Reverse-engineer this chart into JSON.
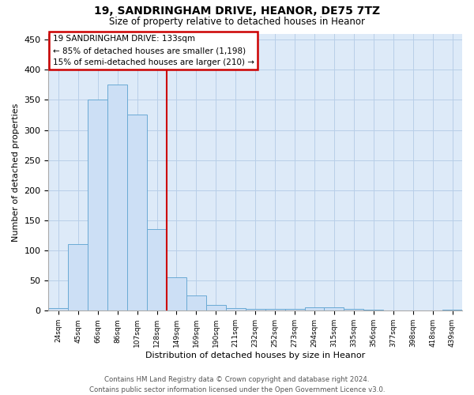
{
  "title": "19, SANDRINGHAM DRIVE, HEANOR, DE75 7TZ",
  "subtitle": "Size of property relative to detached houses in Heanor",
  "xlabel": "Distribution of detached houses by size in Heanor",
  "ylabel": "Number of detached properties",
  "categories": [
    "24sqm",
    "45sqm",
    "66sqm",
    "86sqm",
    "107sqm",
    "128sqm",
    "149sqm",
    "169sqm",
    "190sqm",
    "211sqm",
    "232sqm",
    "252sqm",
    "273sqm",
    "294sqm",
    "315sqm",
    "335sqm",
    "356sqm",
    "377sqm",
    "398sqm",
    "418sqm",
    "439sqm"
  ],
  "values": [
    4,
    110,
    350,
    375,
    325,
    135,
    55,
    25,
    10,
    5,
    3,
    3,
    3,
    6,
    6,
    3,
    2,
    1,
    0,
    0,
    2
  ],
  "bar_color": "#ccdff5",
  "bar_edge_color": "#6aaad4",
  "grid_color": "#b8cfe8",
  "background_color": "#ddeaf8",
  "vline_color": "#cc0000",
  "vline_x": 5.5,
  "annotation_text": "19 SANDRINGHAM DRIVE: 133sqm\n← 85% of detached houses are smaller (1,198)\n15% of semi-detached houses are larger (210) →",
  "annotation_box_facecolor": "#ffffff",
  "annotation_box_edgecolor": "#cc0000",
  "ylim": [
    0,
    460
  ],
  "yticks": [
    0,
    50,
    100,
    150,
    200,
    250,
    300,
    350,
    400,
    450
  ],
  "footer1": "Contains HM Land Registry data © Crown copyright and database right 2024.",
  "footer2": "Contains public sector information licensed under the Open Government Licence v3.0."
}
